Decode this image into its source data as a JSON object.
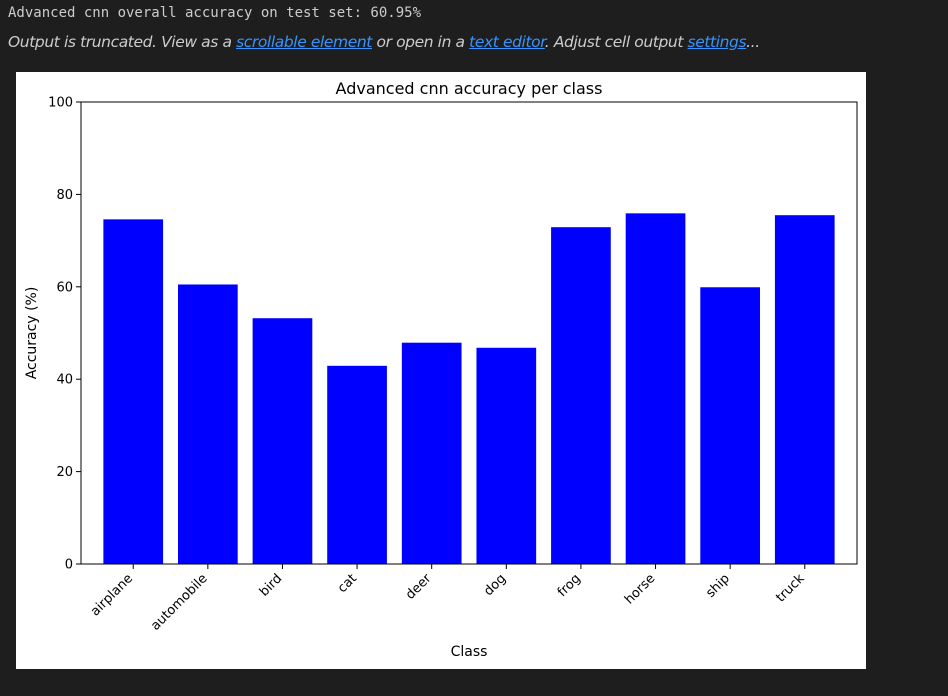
{
  "output": {
    "stdout_line": "Advanced cnn overall accuracy on test set: 60.95%",
    "truncation": {
      "prefix": "Output is truncated. View as a ",
      "link_scrollable": "scrollable element",
      "middle": " or open in a ",
      "link_editor": "text editor",
      "middle2": ". Adjust cell output ",
      "link_settings": "settings",
      "suffix": "..."
    }
  },
  "chart_data": {
    "type": "bar",
    "title": "Advanced cnn accuracy per class",
    "xlabel": "Class",
    "ylabel": "Accuracy (%)",
    "categories": [
      "airplane",
      "automobile",
      "bird",
      "cat",
      "deer",
      "dog",
      "frog",
      "horse",
      "ship",
      "truck"
    ],
    "values": [
      74.6,
      60.5,
      53.2,
      42.9,
      47.9,
      46.8,
      72.9,
      75.9,
      59.9,
      75.5
    ],
    "ylim": [
      0,
      100
    ],
    "yticks": [
      0,
      20,
      40,
      60,
      80,
      100
    ],
    "bar_color": "#0000ff",
    "grid": false,
    "legend": "none"
  }
}
